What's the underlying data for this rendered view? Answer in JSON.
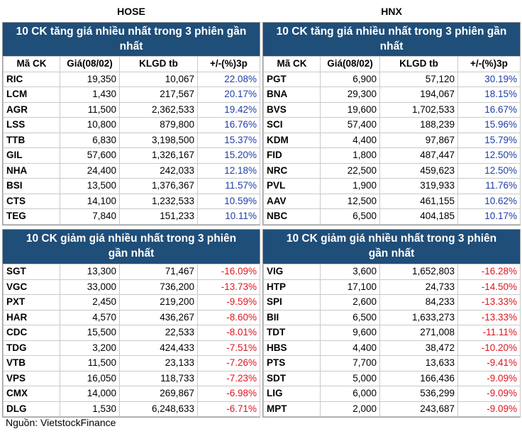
{
  "markets": {
    "hose": "HOSE",
    "hnx": "HNX"
  },
  "titles": {
    "gain": "10 CK tăng giá nhiều nhất trong 3 phiên gần nhất",
    "loss": "10 CK giảm giá nhiều nhất trong 3 phiên gần nhất"
  },
  "headers": [
    "Mã CK",
    "Giá(08/02)",
    "KLGD tb",
    "+/-(%)3p"
  ],
  "hose_gain": [
    [
      "RIC",
      "19,350",
      "10,067",
      "22.08%"
    ],
    [
      "LCM",
      "1,430",
      "217,567",
      "20.17%"
    ],
    [
      "AGR",
      "11,500",
      "2,362,533",
      "19.42%"
    ],
    [
      "LSS",
      "10,800",
      "879,800",
      "16.76%"
    ],
    [
      "TTB",
      "6,830",
      "3,198,500",
      "15.37%"
    ],
    [
      "GIL",
      "57,600",
      "1,326,167",
      "15.20%"
    ],
    [
      "NHA",
      "24,400",
      "242,033",
      "12.18%"
    ],
    [
      "BSI",
      "13,500",
      "1,376,367",
      "11.57%"
    ],
    [
      "CTS",
      "14,100",
      "1,232,533",
      "10.59%"
    ],
    [
      "TEG",
      "7,840",
      "151,233",
      "10.11%"
    ]
  ],
  "hnx_gain": [
    [
      "PGT",
      "6,900",
      "57,120",
      "30.19%"
    ],
    [
      "BNA",
      "29,300",
      "194,067",
      "18.15%"
    ],
    [
      "BVS",
      "19,600",
      "1,702,533",
      "16.67%"
    ],
    [
      "SCI",
      "57,400",
      "188,239",
      "15.96%"
    ],
    [
      "KDM",
      "4,400",
      "97,867",
      "15.79%"
    ],
    [
      "FID",
      "1,800",
      "487,447",
      "12.50%"
    ],
    [
      "NRC",
      "22,500",
      "459,623",
      "12.50%"
    ],
    [
      "PVL",
      "1,900",
      "319,933",
      "11.76%"
    ],
    [
      "AAV",
      "12,500",
      "461,155",
      "10.62%"
    ],
    [
      "NBC",
      "6,500",
      "404,185",
      "10.17%"
    ]
  ],
  "hose_loss": [
    [
      "SGT",
      "13,300",
      "71,467",
      "-16.09%"
    ],
    [
      "VGC",
      "33,000",
      "736,200",
      "-13.73%"
    ],
    [
      "PXT",
      "2,450",
      "219,200",
      "-9.59%"
    ],
    [
      "HAR",
      "4,570",
      "436,267",
      "-8.60%"
    ],
    [
      "CDC",
      "15,500",
      "22,533",
      "-8.01%"
    ],
    [
      "TDG",
      "3,200",
      "424,433",
      "-7.51%"
    ],
    [
      "VTB",
      "11,500",
      "23,133",
      "-7.26%"
    ],
    [
      "VPS",
      "16,050",
      "118,733",
      "-7.23%"
    ],
    [
      "CMX",
      "14,000",
      "269,867",
      "-6.98%"
    ],
    [
      "DLG",
      "1,530",
      "6,248,633",
      "-6.71%"
    ]
  ],
  "hnx_loss": [
    [
      "VIG",
      "3,600",
      "1,652,803",
      "-16.28%"
    ],
    [
      "HTP",
      "17,100",
      "24,733",
      "-14.50%"
    ],
    [
      "SPI",
      "2,600",
      "84,233",
      "-13.33%"
    ],
    [
      "BII",
      "6,500",
      "1,633,273",
      "-13.33%"
    ],
    [
      "TDT",
      "9,600",
      "271,008",
      "-11.11%"
    ],
    [
      "HBS",
      "4,400",
      "38,472",
      "-10.20%"
    ],
    [
      "PTS",
      "7,700",
      "13,633",
      "-9.41%"
    ],
    [
      "SDT",
      "5,000",
      "166,436",
      "-9.09%"
    ],
    [
      "LIG",
      "6,000",
      "536,299",
      "-9.09%"
    ],
    [
      "MPT",
      "2,000",
      "243,687",
      "-9.09%"
    ]
  ],
  "source": "Nguồn: VietstockFinance",
  "colors": {
    "header_bg": "#1f4e79",
    "gain": "#1f3ea6",
    "loss": "#e0141c"
  }
}
